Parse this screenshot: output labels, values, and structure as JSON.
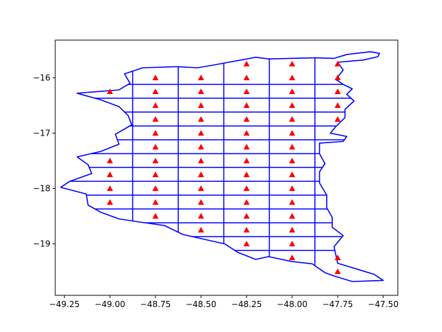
{
  "chart_data": {
    "type": "map",
    "title": "",
    "xlabel": "",
    "ylabel": "",
    "xlim": [
      -49.3,
      -47.42
    ],
    "ylim": [
      -19.93,
      -15.32
    ],
    "x_ticks": [
      -49.25,
      -49.0,
      -48.75,
      -48.5,
      -48.25,
      -48.0,
      -47.75,
      -47.5
    ],
    "x_tick_labels": [
      "−49.25",
      "−49.00",
      "−48.75",
      "−48.50",
      "−48.25",
      "−48.00",
      "−47.75",
      "−47.50"
    ],
    "y_ticks": [
      -16,
      -17,
      -18,
      -19
    ],
    "y_tick_labels": [
      "−16",
      "−17",
      "−18",
      "−19"
    ],
    "grid": false,
    "colors": {
      "boundary": "#0000ff",
      "marker": "#ff0000",
      "axes": "#000000"
    },
    "marker_shape": "triangle-up",
    "boundary_outline": [
      [
        -48.82,
        -15.82
      ],
      [
        -48.63,
        -15.8
      ],
      [
        -48.52,
        -15.82
      ],
      [
        -48.43,
        -15.77
      ],
      [
        -48.2,
        -15.63
      ],
      [
        -48.13,
        -15.66
      ],
      [
        -47.87,
        -15.64
      ],
      [
        -47.77,
        -15.65
      ],
      [
        -47.7,
        -15.58
      ],
      [
        -47.57,
        -15.53
      ],
      [
        -47.52,
        -15.56
      ],
      [
        -47.53,
        -15.62
      ],
      [
        -47.61,
        -15.68
      ],
      [
        -47.75,
        -15.72
      ],
      [
        -47.72,
        -15.86
      ],
      [
        -47.76,
        -16.03
      ],
      [
        -47.72,
        -16.12
      ],
      [
        -47.67,
        -16.2
      ],
      [
        -47.7,
        -16.3
      ],
      [
        -47.66,
        -16.42
      ],
      [
        -47.71,
        -16.57
      ],
      [
        -47.71,
        -16.72
      ],
      [
        -47.76,
        -16.88
      ],
      [
        -47.79,
        -17.0
      ],
      [
        -47.7,
        -17.06
      ],
      [
        -47.72,
        -17.15
      ],
      [
        -47.85,
        -17.18
      ],
      [
        -47.85,
        -17.37
      ],
      [
        -47.82,
        -17.55
      ],
      [
        -47.85,
        -17.7
      ],
      [
        -47.85,
        -17.9
      ],
      [
        -47.81,
        -18.12
      ],
      [
        -47.81,
        -18.35
      ],
      [
        -47.78,
        -18.52
      ],
      [
        -47.78,
        -18.7
      ],
      [
        -47.72,
        -18.85
      ],
      [
        -47.77,
        -19.05
      ],
      [
        -47.76,
        -19.2
      ],
      [
        -47.75,
        -19.35
      ],
      [
        -47.63,
        -19.47
      ],
      [
        -47.55,
        -19.55
      ],
      [
        -47.5,
        -19.66
      ],
      [
        -47.67,
        -19.68
      ],
      [
        -47.77,
        -19.58
      ],
      [
        -47.82,
        -19.52
      ],
      [
        -47.89,
        -19.36
      ],
      [
        -48.0,
        -19.32
      ],
      [
        -48.13,
        -19.23
      ],
      [
        -48.2,
        -19.28
      ],
      [
        -48.3,
        -19.15
      ],
      [
        -48.37,
        -19.0
      ],
      [
        -48.6,
        -18.83
      ],
      [
        -48.7,
        -18.67
      ],
      [
        -48.85,
        -18.6
      ],
      [
        -48.95,
        -18.55
      ],
      [
        -49.05,
        -18.43
      ],
      [
        -49.12,
        -18.3
      ],
      [
        -49.13,
        -18.1
      ],
      [
        -49.27,
        -17.98
      ],
      [
        -49.22,
        -17.87
      ],
      [
        -49.1,
        -17.73
      ],
      [
        -49.12,
        -17.57
      ],
      [
        -49.18,
        -17.43
      ],
      [
        -49.05,
        -17.33
      ],
      [
        -48.95,
        -17.2
      ],
      [
        -48.97,
        -17.02
      ],
      [
        -48.88,
        -16.85
      ],
      [
        -48.9,
        -16.68
      ],
      [
        -48.95,
        -16.52
      ],
      [
        -49.05,
        -16.4
      ],
      [
        -49.18,
        -16.28
      ],
      [
        -48.95,
        -16.22
      ],
      [
        -48.89,
        -16.1
      ],
      [
        -48.92,
        -15.93
      ],
      [
        -48.82,
        -15.82
      ]
    ],
    "grid_rows_y": [
      -16.12,
      -16.37,
      -16.62,
      -16.87,
      -17.12,
      -17.37,
      -17.62,
      -17.87,
      -18.12,
      -18.37,
      -18.62,
      -18.87,
      -19.12
    ],
    "grid_cols_x": [
      -48.875,
      -48.625,
      -48.375,
      -48.125,
      -47.875
    ],
    "markers": [
      {
        "x": -48.25,
        "y": -15.75
      },
      {
        "x": -48.0,
        "y": -15.75
      },
      {
        "x": -47.75,
        "y": -15.75
      },
      {
        "x": -48.75,
        "y": -16.0
      },
      {
        "x": -48.5,
        "y": -16.0
      },
      {
        "x": -48.25,
        "y": -16.0
      },
      {
        "x": -48.0,
        "y": -16.0
      },
      {
        "x": -47.75,
        "y": -16.0
      },
      {
        "x": -49.0,
        "y": -16.25
      },
      {
        "x": -48.75,
        "y": -16.25
      },
      {
        "x": -48.5,
        "y": -16.25
      },
      {
        "x": -48.25,
        "y": -16.25
      },
      {
        "x": -48.0,
        "y": -16.25
      },
      {
        "x": -47.75,
        "y": -16.25
      },
      {
        "x": -48.75,
        "y": -16.5
      },
      {
        "x": -48.5,
        "y": -16.5
      },
      {
        "x": -48.25,
        "y": -16.5
      },
      {
        "x": -48.0,
        "y": -16.5
      },
      {
        "x": -47.75,
        "y": -16.5
      },
      {
        "x": -48.75,
        "y": -16.75
      },
      {
        "x": -48.5,
        "y": -16.75
      },
      {
        "x": -48.25,
        "y": -16.75
      },
      {
        "x": -48.0,
        "y": -16.75
      },
      {
        "x": -47.75,
        "y": -16.75
      },
      {
        "x": -48.75,
        "y": -17.0
      },
      {
        "x": -48.5,
        "y": -17.0
      },
      {
        "x": -48.25,
        "y": -17.0
      },
      {
        "x": -48.0,
        "y": -17.0
      },
      {
        "x": -48.75,
        "y": -17.25
      },
      {
        "x": -48.5,
        "y": -17.25
      },
      {
        "x": -48.25,
        "y": -17.25
      },
      {
        "x": -48.0,
        "y": -17.25
      },
      {
        "x": -49.0,
        "y": -17.5
      },
      {
        "x": -48.75,
        "y": -17.5
      },
      {
        "x": -48.5,
        "y": -17.5
      },
      {
        "x": -48.25,
        "y": -17.5
      },
      {
        "x": -48.0,
        "y": -17.5
      },
      {
        "x": -49.0,
        "y": -17.75
      },
      {
        "x": -48.75,
        "y": -17.75
      },
      {
        "x": -48.5,
        "y": -17.75
      },
      {
        "x": -48.25,
        "y": -17.75
      },
      {
        "x": -48.0,
        "y": -17.75
      },
      {
        "x": -49.0,
        "y": -18.0
      },
      {
        "x": -48.75,
        "y": -18.0
      },
      {
        "x": -48.5,
        "y": -18.0
      },
      {
        "x": -48.25,
        "y": -18.0
      },
      {
        "x": -48.0,
        "y": -18.0
      },
      {
        "x": -49.0,
        "y": -18.25
      },
      {
        "x": -48.75,
        "y": -18.25
      },
      {
        "x": -48.5,
        "y": -18.25
      },
      {
        "x": -48.25,
        "y": -18.25
      },
      {
        "x": -48.0,
        "y": -18.25
      },
      {
        "x": -48.75,
        "y": -18.5
      },
      {
        "x": -48.5,
        "y": -18.5
      },
      {
        "x": -48.25,
        "y": -18.5
      },
      {
        "x": -48.0,
        "y": -18.5
      },
      {
        "x": -48.5,
        "y": -18.75
      },
      {
        "x": -48.25,
        "y": -18.75
      },
      {
        "x": -48.0,
        "y": -18.75
      },
      {
        "x": -48.25,
        "y": -19.0
      },
      {
        "x": -48.0,
        "y": -19.0
      },
      {
        "x": -48.0,
        "y": -19.25
      },
      {
        "x": -47.75,
        "y": -19.25
      },
      {
        "x": -47.75,
        "y": -19.5
      }
    ]
  }
}
